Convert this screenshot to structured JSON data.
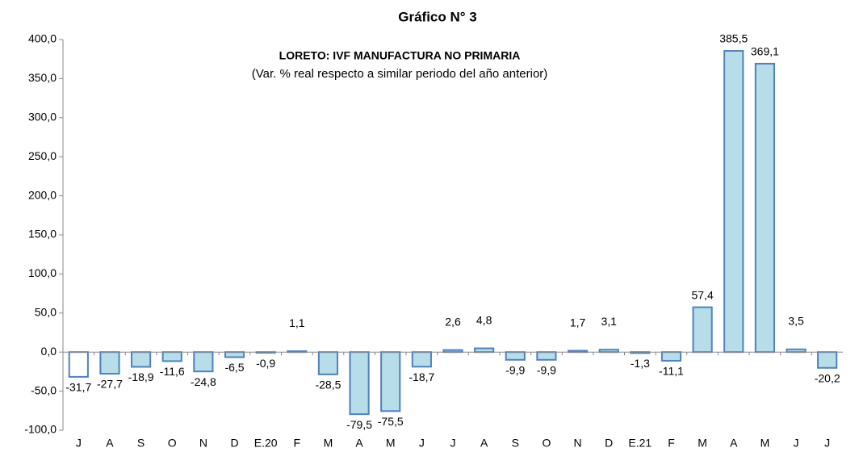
{
  "chart_data": {
    "type": "bar",
    "title": "Gráfico N° 3",
    "subtitle": "LORETO: IVF MANUFACTURA NO PRIMARIA",
    "note": "(Var. % real respecto a similar periodo del año anterior)",
    "categories": [
      "J",
      "A",
      "S",
      "O",
      "N",
      "D",
      "E.20",
      "F",
      "M",
      "A",
      "M",
      "J",
      "J",
      "A",
      "S",
      "O",
      "N",
      "D",
      "E.21",
      "F",
      "M",
      "A",
      "M",
      "J",
      "J"
    ],
    "values": [
      -31.7,
      -27.7,
      -18.9,
      -11.6,
      -24.8,
      -6.5,
      -0.9,
      1.1,
      -28.5,
      -79.5,
      -75.5,
      -18.7,
      2.6,
      4.8,
      -9.9,
      -9.9,
      1.7,
      3.1,
      -1.3,
      -11.1,
      57.4,
      385.5,
      369.1,
      3.5,
      -20.2
    ],
    "value_labels": [
      "-31,7",
      "-27,7",
      "-18,9",
      "-11,6",
      "-24,8",
      "-6,5",
      "-0,9",
      "1,1",
      "-28,5",
      "-79,5",
      "-75,5",
      "-18,7",
      "2,6",
      "4,8",
      "-9,9",
      "-9,9",
      "1,7",
      "3,1",
      "-1,3",
      "-11,1",
      "57,4",
      "385,5",
      "369,1",
      "3,5",
      "-20,2"
    ],
    "colors": [
      "#ffffff",
      "#b7dde8",
      "#b7dde8",
      "#b7dde8",
      "#b7dde8",
      "#b7dde8",
      "#b7dde8",
      "#b7dde8",
      "#b7dde8",
      "#b7dde8",
      "#b7dde8",
      "#b7dde8",
      "#b7dde8",
      "#b7dde8",
      "#b7dde8",
      "#b7dde8",
      "#b7dde8",
      "#b7dde8",
      "#b7dde8",
      "#b7dde8",
      "#b7dde8",
      "#b7dde8",
      "#b7dde8",
      "#b7dde8",
      "#b7dde8"
    ],
    "edge_color": "#4f81bd",
    "ylim": [
      -100,
      400
    ],
    "yticks": [
      {
        "value": -100,
        "label": "-100,0"
      },
      {
        "value": -50,
        "label": "-50,0"
      },
      {
        "value": 0,
        "label": "0,0"
      },
      {
        "value": 50,
        "label": "50,0"
      },
      {
        "value": 100,
        "label": "100,0"
      },
      {
        "value": 150,
        "label": "150,0"
      },
      {
        "value": 200,
        "label": "200,0"
      },
      {
        "value": 250,
        "label": "250,0"
      },
      {
        "value": 300,
        "label": "300,0"
      },
      {
        "value": 350,
        "label": "350,0"
      },
      {
        "value": 400,
        "label": "400,0"
      }
    ],
    "grid": false
  }
}
